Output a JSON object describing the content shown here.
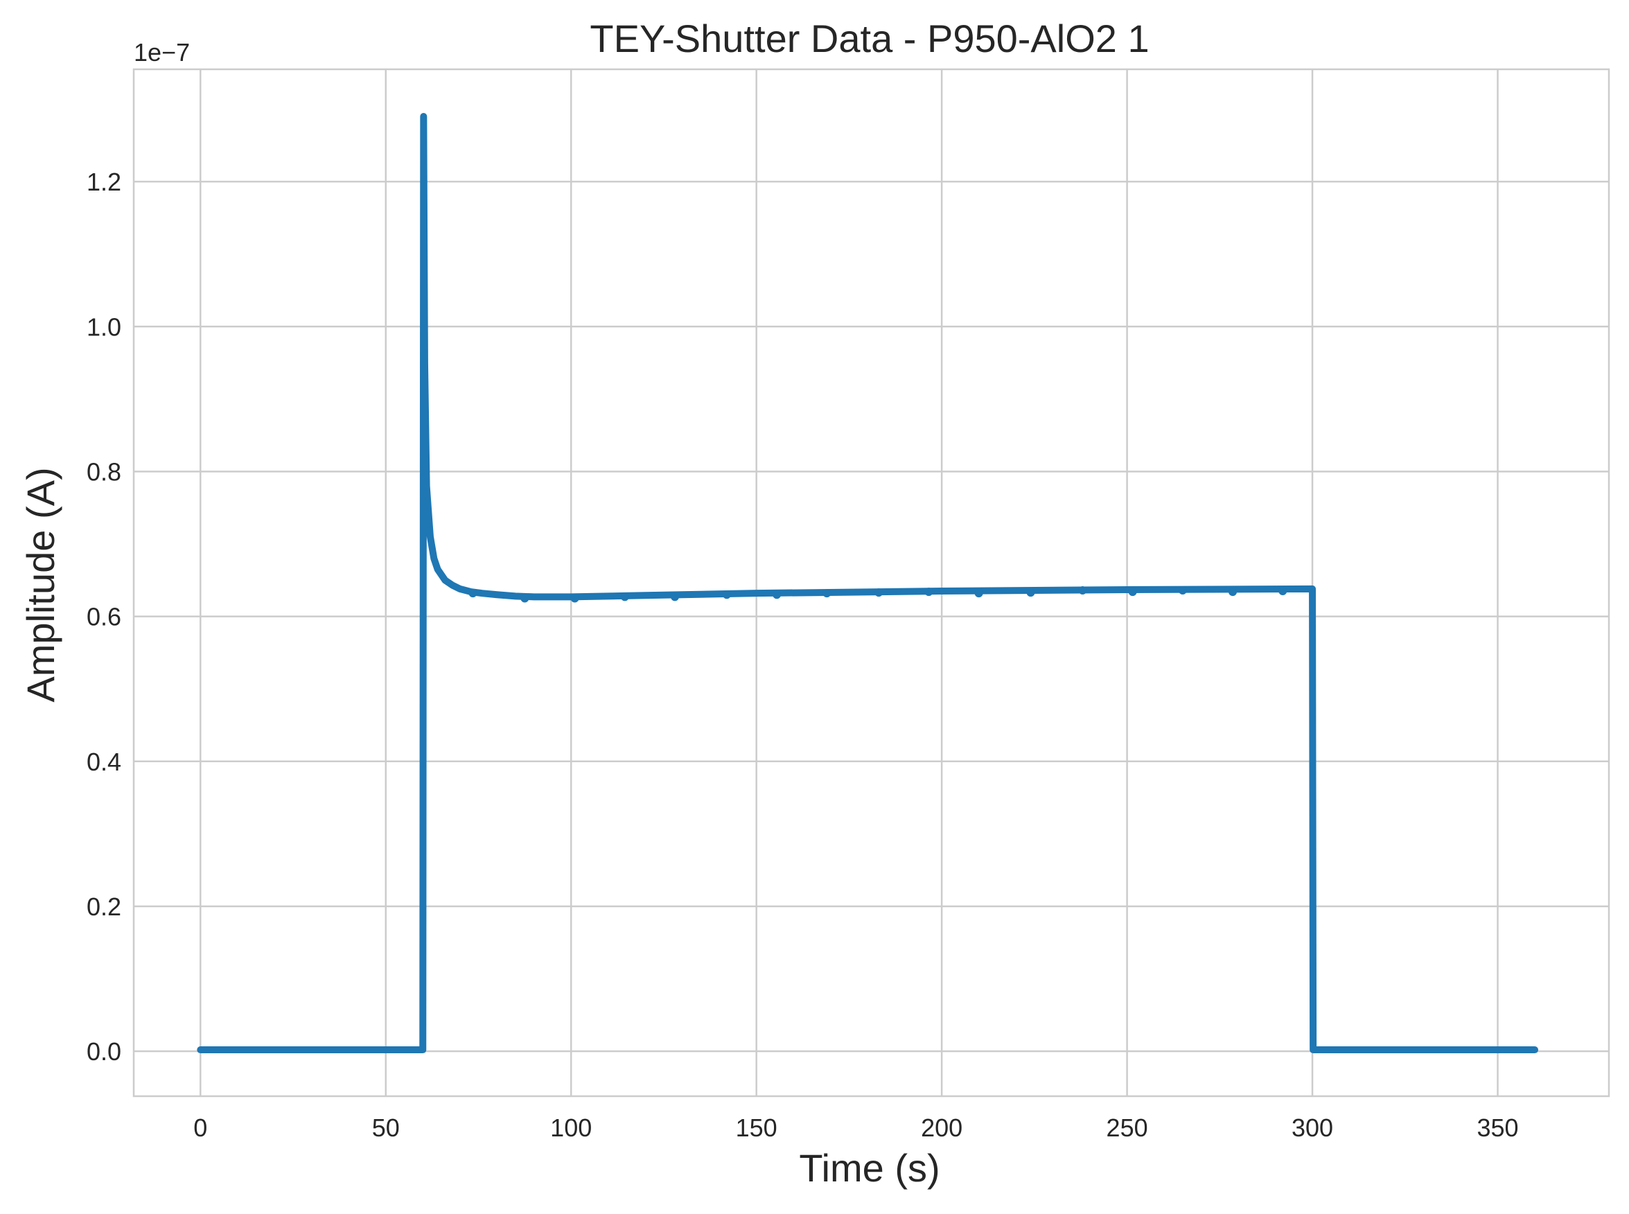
{
  "chart_data": {
    "type": "line",
    "title": "TEY-Shutter Data - P950-AlO2 1",
    "xlabel": "Time (s)",
    "ylabel": "Amplitude (A)",
    "y_offset_label": "1e−7",
    "xlim": [
      -18,
      380
    ],
    "ylim": [
      -0.062,
      1.355
    ],
    "x_ticks": [
      0,
      50,
      100,
      150,
      200,
      250,
      300,
      350
    ],
    "x_tick_labels": [
      "0",
      "50",
      "100",
      "150",
      "200",
      "250",
      "300",
      "350"
    ],
    "y_ticks": [
      0.0,
      0.2,
      0.4,
      0.6,
      0.8,
      1.0,
      1.2
    ],
    "y_tick_labels": [
      "0.0",
      "0.2",
      "0.4",
      "0.6",
      "0.8",
      "1.0",
      "1.2"
    ],
    "grid": true,
    "line_color": "#1f77b4",
    "series": [
      {
        "x": [
          0,
          60,
          60.2,
          60.5,
          61,
          62,
          63,
          64,
          66,
          68,
          70,
          73,
          76,
          80,
          85,
          90,
          100,
          120,
          150,
          200,
          250,
          300,
          300.2,
          330,
          360
        ],
        "y": [
          0.002,
          0.002,
          1.29,
          0.95,
          0.78,
          0.71,
          0.68,
          0.665,
          0.65,
          0.643,
          0.638,
          0.634,
          0.632,
          0.63,
          0.628,
          0.627,
          0.627,
          0.629,
          0.632,
          0.635,
          0.637,
          0.638,
          0.002,
          0.002,
          0.002
        ]
      },
      {
        "x": [
          73.5,
          87.5,
          101,
          114.5,
          128,
          142,
          155.5,
          169,
          183,
          196.5,
          210,
          224,
          238,
          251.5,
          265,
          278.5,
          292
        ],
        "y": [
          0.632,
          0.625,
          0.625,
          0.627,
          0.627,
          0.63,
          0.63,
          0.632,
          0.633,
          0.634,
          0.632,
          0.633,
          0.636,
          0.634,
          0.636,
          0.634,
          0.635
        ]
      }
    ]
  }
}
